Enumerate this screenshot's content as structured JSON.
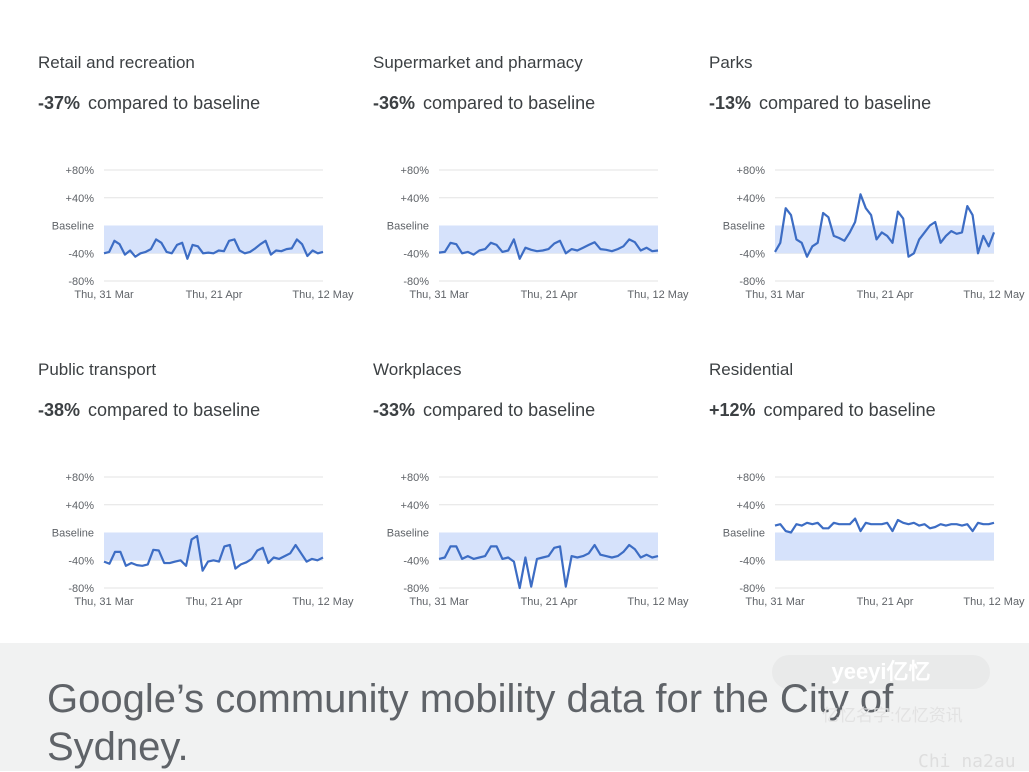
{
  "ticks": {
    "y_labels": [
      "+80%",
      "+40%",
      "Baseline",
      "-40%",
      "-80%"
    ],
    "x_labels": [
      "Thu, 31 Mar",
      "Thu, 21 Apr",
      "Thu, 12 May"
    ]
  },
  "chart_data": [
    {
      "type": "line",
      "title": "Retail and recreation",
      "change": "-37%",
      "change_label": "compared to baseline",
      "ylim": [
        -80,
        80
      ],
      "x_ticks": [
        "Thu, 31 Mar",
        "Thu, 21 Apr",
        "Thu, 12 May"
      ],
      "y_ticks": [
        "+80%",
        "+40%",
        "Baseline",
        "-40%",
        "-80%"
      ],
      "series": [
        {
          "values": [
            -40,
            -38,
            -22,
            -27,
            -42,
            -36,
            -45,
            -40,
            -38,
            -34,
            -20,
            -25,
            -38,
            -40,
            -28,
            -25,
            -48,
            -28,
            -30,
            -40,
            -39,
            -40,
            -36,
            -37,
            -22,
            -20,
            -36,
            -40,
            -38,
            -33,
            -27,
            -22,
            -42,
            -36,
            -37,
            -34,
            -33,
            -20,
            -27,
            -44,
            -36,
            -40,
            -38
          ]
        }
      ]
    },
    {
      "type": "line",
      "title": "Supermarket and pharmacy",
      "change": "-36%",
      "change_label": "compared to baseline",
      "ylim": [
        -80,
        80
      ],
      "x_ticks": [
        "Thu, 31 Mar",
        "Thu, 21 Apr",
        "Thu, 12 May"
      ],
      "series": [
        {
          "values": [
            -39,
            -38,
            -25,
            -27,
            -40,
            -38,
            -42,
            -36,
            -34,
            -25,
            -28,
            -38,
            -36,
            -20,
            -48,
            -32,
            -35,
            -37,
            -36,
            -34,
            -26,
            -22,
            -40,
            -34,
            -36,
            -32,
            -28,
            -24,
            -34,
            -35,
            -37,
            -34,
            -30,
            -20,
            -24,
            -36,
            -32,
            -37,
            -36
          ]
        }
      ]
    },
    {
      "type": "line",
      "title": "Parks",
      "change": "-13%",
      "change_label": "compared to baseline",
      "ylim": [
        -80,
        80
      ],
      "x_ticks": [
        "Thu, 31 Mar",
        "Thu, 21 Apr",
        "Thu, 12 May"
      ],
      "series": [
        {
          "values": [
            -38,
            -25,
            25,
            15,
            -20,
            -25,
            -45,
            -30,
            -25,
            18,
            12,
            -15,
            -18,
            -22,
            -10,
            5,
            45,
            25,
            15,
            -20,
            -10,
            -15,
            -25,
            20,
            10,
            -45,
            -40,
            -20,
            -10,
            0,
            5,
            -25,
            -15,
            -8,
            -12,
            -10,
            28,
            15,
            -40,
            -15,
            -30,
            -10
          ]
        }
      ]
    },
    {
      "type": "line",
      "title": "Public transport",
      "change": "-38%",
      "change_label": "compared to baseline",
      "ylim": [
        -80,
        80
      ],
      "x_ticks": [
        "Thu, 31 Mar",
        "Thu, 21 Apr",
        "Thu, 12 May"
      ],
      "series": [
        {
          "values": [
            -42,
            -45,
            -28,
            -28,
            -48,
            -44,
            -47,
            -48,
            -46,
            -25,
            -26,
            -44,
            -44,
            -42,
            -40,
            -48,
            -10,
            -5,
            -55,
            -42,
            -40,
            -42,
            -20,
            -18,
            -52,
            -46,
            -43,
            -38,
            -26,
            -22,
            -44,
            -36,
            -38,
            -34,
            -30,
            -18,
            -30,
            -42,
            -38,
            -40,
            -36
          ]
        }
      ]
    },
    {
      "type": "line",
      "title": "Workplaces",
      "change": "-33%",
      "change_label": "compared to baseline",
      "ylim": [
        -80,
        80
      ],
      "x_ticks": [
        "Thu, 31 Mar",
        "Thu, 21 Apr",
        "Thu, 12 May"
      ],
      "series": [
        {
          "values": [
            -38,
            -36,
            -20,
            -20,
            -38,
            -34,
            -38,
            -36,
            -34,
            -20,
            -20,
            -38,
            -36,
            -42,
            -80,
            -36,
            -78,
            -38,
            -36,
            -34,
            -22,
            -20,
            -78,
            -34,
            -36,
            -34,
            -30,
            -18,
            -32,
            -34,
            -36,
            -34,
            -28,
            -18,
            -24,
            -36,
            -32,
            -36,
            -34
          ]
        }
      ]
    },
    {
      "type": "line",
      "title": "Residential",
      "change": "+12%",
      "change_label": "compared to baseline",
      "ylim": [
        -80,
        80
      ],
      "x_ticks": [
        "Thu, 31 Mar",
        "Thu, 21 Apr",
        "Thu, 12 May"
      ],
      "series": [
        {
          "values": [
            10,
            12,
            2,
            0,
            12,
            10,
            14,
            12,
            14,
            6,
            6,
            14,
            12,
            12,
            12,
            20,
            2,
            14,
            12,
            12,
            12,
            14,
            2,
            18,
            14,
            12,
            14,
            10,
            12,
            6,
            8,
            12,
            10,
            12,
            12,
            10,
            12,
            2,
            14,
            12,
            12,
            14
          ]
        }
      ]
    }
  ],
  "caption": "Google’s community mobility data for the City of Sydney.",
  "watermarks": {
    "badge": "yeeyi亿忆",
    "cn_text": "亿忆名字:亿忆资讯",
    "site": "Chi na2au"
  }
}
